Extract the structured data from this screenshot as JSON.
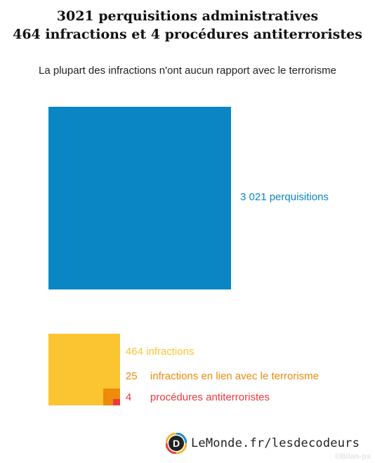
{
  "chart_data": {
    "type": "area-squares",
    "title_line1": "3021 perquisitions administratives",
    "title_line2": "464 infractions et 4 procédures antiterroristes",
    "subtitle": "La plupart des infractions n'ont aucun rapport avec le terrorisme",
    "items": [
      {
        "key": "perquisitions",
        "value": 3021,
        "label": "3 021 perquisitions",
        "color": "#0a86c4"
      },
      {
        "key": "infractions",
        "value": 464,
        "label": "464 infractions",
        "color": "#fbc531"
      },
      {
        "key": "terrorisme",
        "value": 25,
        "num_label": "25",
        "label": "infractions en lien avec le terrorisme",
        "color": "#ee8a0c"
      },
      {
        "key": "procedures",
        "value": 4,
        "num_label": "4",
        "label": "procédures antiterroristes",
        "color": "#ec3a3d"
      }
    ]
  },
  "footer": {
    "logo_letter": "D",
    "text": "LeMonde.fr/lesdecodeurs"
  },
  "watermark": "©Bilan-ps"
}
